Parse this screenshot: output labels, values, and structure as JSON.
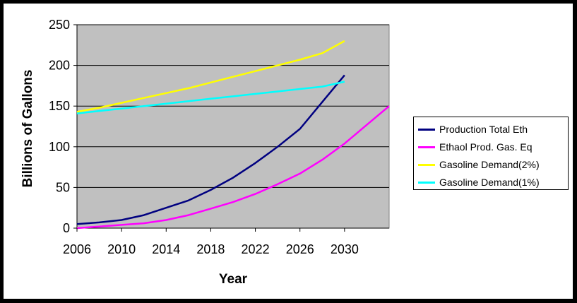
{
  "chart_data": {
    "type": "line",
    "title": "",
    "xlabel": "Year",
    "ylabel": "Billions of Gallons",
    "xlim": [
      2006,
      2034
    ],
    "ylim": [
      0,
      250
    ],
    "x_ticks": [
      "2006",
      "2010",
      "2014",
      "2018",
      "2022",
      "2026",
      "2030"
    ],
    "y_ticks": [
      "0",
      "50",
      "100",
      "150",
      "200",
      "250"
    ],
    "grid": "horizontal",
    "legend_position": "right",
    "plot_background": "#c0c0c0",
    "series": [
      {
        "name": "Production Total Eth",
        "color": "#000080",
        "x": [
          2006,
          2008,
          2010,
          2012,
          2014,
          2016,
          2018,
          2020,
          2022,
          2024,
          2026,
          2028,
          2030
        ],
        "y": [
          5,
          7,
          10,
          16,
          25,
          34,
          47,
          62,
          80,
          100,
          122,
          155,
          188
        ]
      },
      {
        "name": "Ethaol Prod. Gas. Eq",
        "color": "#ff00ff",
        "x": [
          2006,
          2008,
          2010,
          2012,
          2014,
          2016,
          2018,
          2020,
          2022,
          2024,
          2026,
          2028,
          2030,
          2032,
          2034
        ],
        "y": [
          0,
          2,
          4,
          6,
          10,
          16,
          24,
          32,
          42,
          54,
          67,
          84,
          104,
          127,
          150
        ]
      },
      {
        "name": "Gasoline Demand(2%)",
        "color": "#ffff00",
        "x": [
          2006,
          2008,
          2010,
          2012,
          2014,
          2016,
          2018,
          2020,
          2022,
          2024,
          2026,
          2028,
          2030
        ],
        "y": [
          143,
          148,
          154,
          160,
          166,
          172,
          179,
          186,
          193,
          200,
          207,
          215,
          230
        ]
      },
      {
        "name": "Gasoline Demand(1%)",
        "color": "#00ffff",
        "x": [
          2006,
          2008,
          2010,
          2012,
          2014,
          2016,
          2018,
          2020,
          2022,
          2024,
          2026,
          2028,
          2030
        ],
        "y": [
          141,
          144,
          147,
          150,
          153,
          156,
          159,
          162,
          165,
          168,
          171,
          174,
          180
        ]
      }
    ]
  }
}
